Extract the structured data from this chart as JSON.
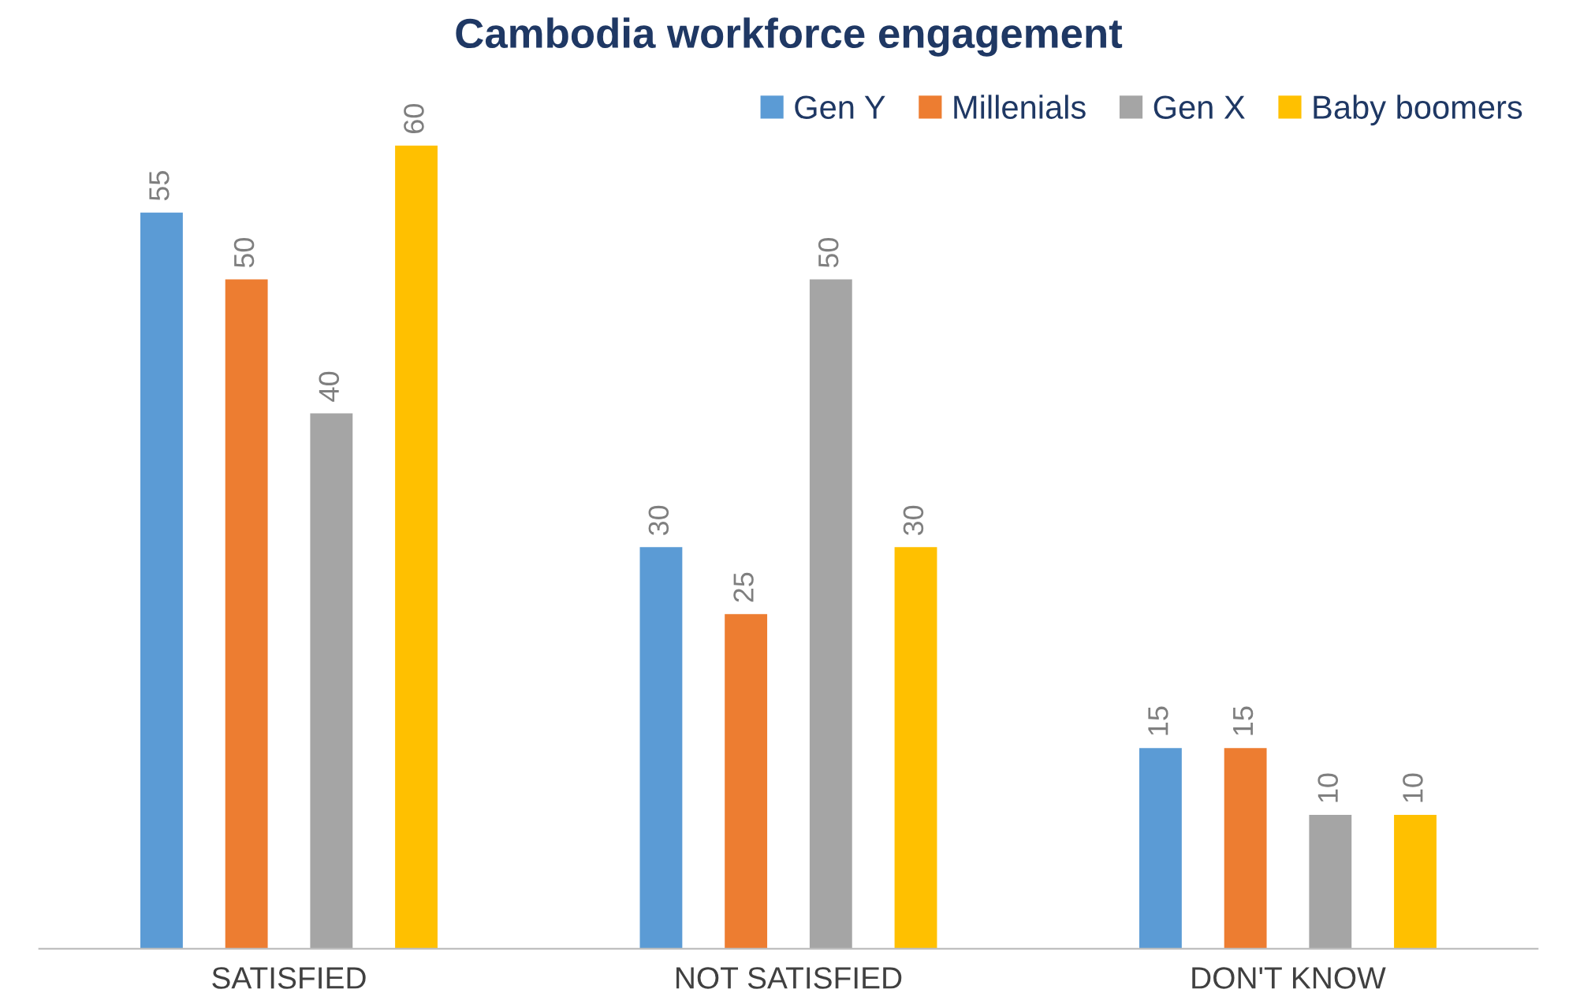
{
  "chart_data": {
    "type": "bar",
    "title": "Cambodia workforce engagement",
    "categories": [
      "SATISFIED",
      "NOT SATISFIED",
      "DON'T KNOW"
    ],
    "series": [
      {
        "name": "Gen Y",
        "color": "#5b9bd5",
        "values": [
          55,
          30,
          15
        ]
      },
      {
        "name": "Millenials",
        "color": "#ed7d31",
        "values": [
          50,
          25,
          15
        ]
      },
      {
        "name": "Gen X",
        "color": "#a5a5a5",
        "values": [
          40,
          50,
          10
        ]
      },
      {
        "name": "Baby boomers",
        "color": "#ffc000",
        "values": [
          60,
          30,
          10
        ]
      }
    ],
    "data_labels": true,
    "legend": "top right",
    "tick_labels": "x",
    "grid": false
  }
}
